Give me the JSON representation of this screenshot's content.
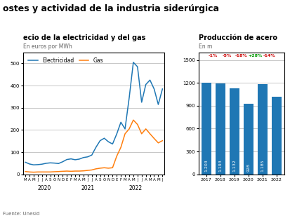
{
  "title": "ostes y actividad de la industria siderúrgica",
  "source": "Fuente: Unesid",
  "chart_data": [
    {
      "type": "line",
      "title": "ecio de la electricidad y del gas",
      "subtitle": "En euros por MWh",
      "categories": [
        "M",
        "A",
        "M",
        "J",
        "J",
        "A",
        "S",
        "O",
        "N",
        "D",
        "E",
        "F",
        "M",
        "A",
        "M",
        "J",
        "J",
        "A",
        "S",
        "O",
        "N",
        "D",
        "E",
        "F",
        "M",
        "A",
        "M",
        "J",
        "J",
        "A",
        "M",
        "A",
        "M",
        "J"
      ],
      "series": [
        {
          "name": "Electricidad",
          "values": [
            55,
            47,
            43,
            44,
            46,
            50,
            52,
            51,
            49,
            57,
            67,
            70,
            66,
            69,
            76,
            79,
            87,
            122,
            152,
            163,
            147,
            137,
            182,
            235,
            205,
            345,
            505,
            485,
            325,
            405,
            425,
            385,
            315,
            385
          ]
        },
        {
          "name": "Gas",
          "values": [
            13,
            11,
            10,
            11,
            11,
            11,
            11,
            12,
            13,
            14,
            15,
            14,
            15,
            15,
            16,
            18,
            20,
            25,
            28,
            30,
            28,
            30,
            82,
            122,
            183,
            205,
            245,
            225,
            183,
            205,
            183,
            162,
            142,
            152
          ]
        }
      ],
      "ylim": [
        0,
        550
      ],
      "yticks": [
        0,
        100,
        200,
        300,
        400,
        500
      ],
      "grid": "y",
      "legend": "upper left",
      "annotations": [
        {
          "text": "2020",
          "x": 4.5
        },
        {
          "text": "2021",
          "x": 15
        },
        {
          "text": "2022",
          "x": 26.5
        }
      ]
    },
    {
      "type": "bar",
      "title": "Producción de acero",
      "subtitle": "En m",
      "categories": [
        "2017",
        "2018",
        "2019",
        "2020",
        "2021",
        "2022"
      ],
      "values": [
        1203,
        1193,
        1132,
        928,
        1185,
        1020
      ],
      "value_labels": [
        "1.203",
        "1.193",
        "1.132",
        "928",
        "1.185",
        null
      ],
      "ylim": [
        0,
        1600
      ],
      "yticks": [
        0,
        300,
        600,
        900,
        1200,
        1500
      ],
      "grid": "y",
      "annotations": [
        {
          "text": "-1%",
          "color": "#cc0000"
        },
        {
          "text": "-5%",
          "color": "#cc0000"
        },
        {
          "text": "-18%",
          "color": "#cc0000"
        },
        {
          "text": "+28%",
          "color": "#009900"
        },
        {
          "text": "-14%",
          "color": "#cc0000"
        }
      ]
    }
  ]
}
